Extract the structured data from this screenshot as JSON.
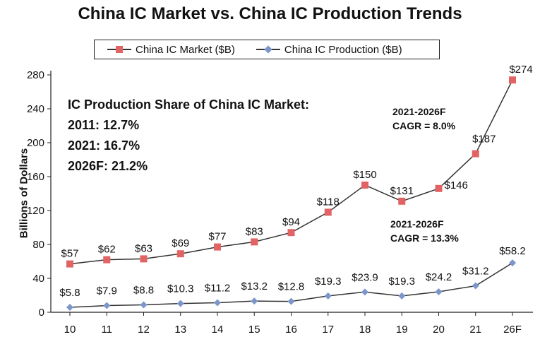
{
  "chart_data": {
    "type": "line",
    "title": "China IC Market vs. China IC Production Trends",
    "ylabel": "Billions of Dollars",
    "xlabel": "",
    "categories": [
      "10",
      "11",
      "12",
      "13",
      "14",
      "15",
      "16",
      "17",
      "18",
      "19",
      "20",
      "21",
      "26F"
    ],
    "ylim": [
      0,
      280
    ],
    "yticks": [
      0,
      40,
      80,
      120,
      160,
      200,
      240,
      280
    ],
    "legend_placement": "top",
    "series": [
      {
        "name": "China IC Market ($B)",
        "color": "#e26363",
        "marker": "square",
        "values": [
          57,
          62,
          63,
          69,
          77,
          83,
          94,
          118,
          150,
          131,
          146,
          187,
          274
        ],
        "labels": [
          "$57",
          "$62",
          "$63",
          "$69",
          "$77",
          "$83",
          "$94",
          "$118",
          "$150",
          "$131",
          "$146",
          "$187",
          "$274"
        ]
      },
      {
        "name": "China IC Production ($B)",
        "color": "#7b96c8",
        "marker": "diamond",
        "values": [
          5.8,
          7.9,
          8.8,
          10.3,
          11.2,
          13.2,
          12.8,
          19.3,
          23.9,
          19.3,
          24.2,
          31.2,
          58.2
        ],
        "labels": [
          "$5.8",
          "$7.9",
          "$8.8",
          "$10.3",
          "$11.2",
          "$13.2",
          "$12.8",
          "$19.3",
          "$23.9",
          "$19.3",
          "$24.2",
          "$31.2",
          "$58.2"
        ]
      }
    ],
    "annotations": {
      "share_lines": [
        "IC Production Share of China IC Market:",
        "2011: 12.7%",
        "2021: 16.7%",
        "2026F: 21.2%"
      ],
      "market_cagr": [
        "2021-2026F",
        "CAGR = 8.0%"
      ],
      "production_cagr": [
        "2021-2026F",
        "CAGR = 13.3%"
      ]
    }
  }
}
